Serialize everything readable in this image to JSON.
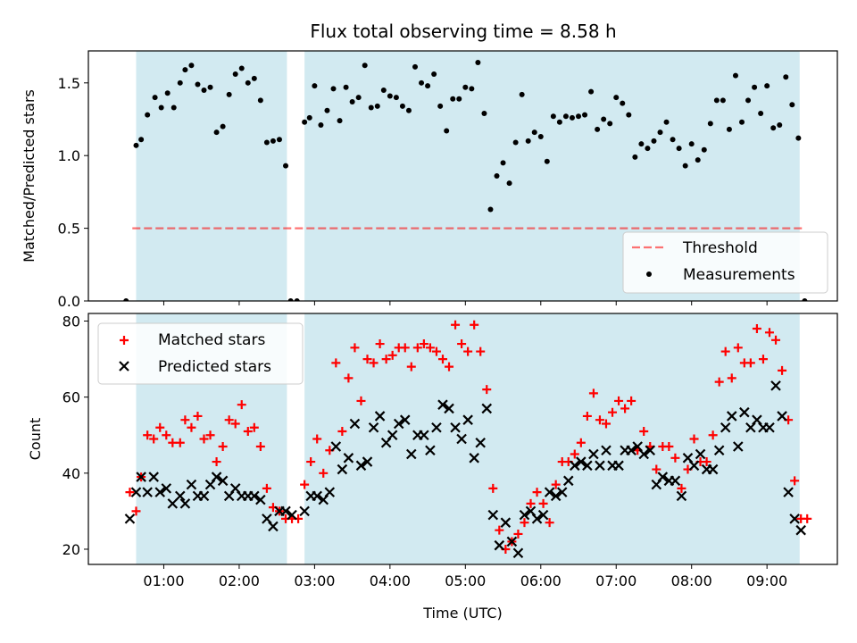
{
  "title": "Flux total observing time = 8.58 h",
  "colors": {
    "shade": "#add8e6",
    "threshold": "#ff0000",
    "measurement": "#000000",
    "matched": "#ff0000",
    "predicted": "#000000"
  },
  "chart_data": [
    {
      "type": "scatter",
      "ylabel": "Matched/Predicted stars",
      "ylim": [
        0,
        1.72
      ],
      "yticks": [
        "0.0",
        "0.5",
        "1.0",
        "1.5"
      ],
      "legend_position": "lower-right",
      "threshold": {
        "name": "Threshold",
        "value": 0.5,
        "x_range": [
          "00:35",
          "09:30"
        ]
      },
      "shaded_spans": [
        [
          "00:38",
          "02:38"
        ],
        [
          "02:52",
          "09:26"
        ]
      ],
      "series": [
        {
          "name": "Measurements",
          "x": [
            "00:30",
            "00:38",
            "00:42",
            "00:47",
            "00:53",
            "00:58",
            "01:03",
            "01:08",
            "01:13",
            "01:17",
            "01:22",
            "01:27",
            "01:32",
            "01:37",
            "01:42",
            "01:47",
            "01:52",
            "01:57",
            "02:02",
            "02:07",
            "02:12",
            "02:17",
            "02:22",
            "02:27",
            "02:32",
            "02:37",
            "02:41",
            "02:46",
            "02:52",
            "02:56",
            "03:00",
            "03:05",
            "03:10",
            "03:15",
            "03:20",
            "03:25",
            "03:30",
            "03:35",
            "03:40",
            "03:45",
            "03:50",
            "03:55",
            "04:00",
            "04:05",
            "04:10",
            "04:15",
            "04:20",
            "04:25",
            "04:30",
            "04:35",
            "04:40",
            "04:45",
            "04:50",
            "04:55",
            "05:00",
            "05:05",
            "05:10",
            "05:15",
            "05:20",
            "05:25",
            "05:30",
            "05:35",
            "05:40",
            "05:45",
            "05:50",
            "05:55",
            "06:00",
            "06:05",
            "06:10",
            "06:15",
            "06:20",
            "06:25",
            "06:30",
            "06:35",
            "06:40",
            "06:45",
            "06:50",
            "06:55",
            "07:00",
            "07:05",
            "07:10",
            "07:15",
            "07:20",
            "07:25",
            "07:30",
            "07:35",
            "07:40",
            "07:45",
            "07:50",
            "07:55",
            "08:00",
            "08:05",
            "08:10",
            "08:15",
            "08:20",
            "08:25",
            "08:30",
            "08:35",
            "08:40",
            "08:45",
            "08:50",
            "08:55",
            "09:00",
            "09:05",
            "09:10",
            "09:15",
            "09:20",
            "09:25",
            "09:30"
          ],
          "y": [
            0,
            1.07,
            1.11,
            1.28,
            1.4,
            1.33,
            1.43,
            1.33,
            1.5,
            1.59,
            1.62,
            1.49,
            1.45,
            1.47,
            1.16,
            1.2,
            1.42,
            1.56,
            1.6,
            1.5,
            1.53,
            1.38,
            1.09,
            1.1,
            1.11,
            0.93,
            0,
            0,
            1.23,
            1.26,
            1.48,
            1.21,
            1.31,
            1.46,
            1.24,
            1.47,
            1.37,
            1.4,
            1.62,
            1.33,
            1.34,
            1.45,
            1.41,
            1.4,
            1.34,
            1.31,
            1.61,
            1.5,
            1.48,
            1.56,
            1.34,
            1.17,
            1.39,
            1.39,
            1.47,
            1.46,
            1.64,
            1.29,
            0.63,
            0.86,
            0.95,
            0.81,
            1.09,
            1.42,
            1.1,
            1.16,
            1.13,
            0.96,
            1.27,
            1.23,
            1.27,
            1.26,
            1.27,
            1.28,
            1.44,
            1.18,
            1.25,
            1.22,
            1.4,
            1.36,
            1.28,
            0.99,
            1.08,
            1.05,
            1.1,
            1.16,
            1.23,
            1.11,
            1.05,
            0.93,
            1.08,
            0.97,
            1.04,
            1.22,
            1.38,
            1.38,
            1.18,
            1.55,
            1.23,
            1.38,
            1.47,
            1.29,
            1.48,
            1.19,
            1.21,
            1.54,
            1.35,
            1.12,
            0
          ]
        }
      ]
    },
    {
      "type": "scatter",
      "xlabel": "Time (UTC)",
      "ylabel": "Count",
      "ylim": [
        16,
        82
      ],
      "yticks": [
        "20",
        "40",
        "60",
        "80"
      ],
      "xticks": [
        "01:00",
        "02:00",
        "03:00",
        "04:00",
        "05:00",
        "06:00",
        "07:00",
        "08:00",
        "09:00"
      ],
      "xlim": [
        "00:00",
        "09:56"
      ],
      "legend_position": "upper-left",
      "shaded_spans": [
        [
          "00:38",
          "02:38"
        ],
        [
          "02:52",
          "09:26"
        ]
      ],
      "series": [
        {
          "name": "Matched stars",
          "marker": "+",
          "x": [
            "00:33",
            "00:38",
            "00:42",
            "00:47",
            "00:52",
            "00:57",
            "01:02",
            "01:07",
            "01:13",
            "01:17",
            "01:22",
            "01:27",
            "01:32",
            "01:37",
            "01:42",
            "01:47",
            "01:52",
            "01:57",
            "02:02",
            "02:07",
            "02:12",
            "02:17",
            "02:22",
            "02:27",
            "02:32",
            "02:37",
            "02:42",
            "02:47",
            "02:52",
            "02:57",
            "03:02",
            "03:07",
            "03:12",
            "03:17",
            "03:22",
            "03:27",
            "03:32",
            "03:37",
            "03:42",
            "03:47",
            "03:52",
            "03:57",
            "04:02",
            "04:07",
            "04:12",
            "04:17",
            "04:22",
            "04:27",
            "04:32",
            "04:37",
            "04:42",
            "04:47",
            "04:52",
            "04:57",
            "05:02",
            "05:07",
            "05:12",
            "05:17",
            "05:22",
            "05:27",
            "05:32",
            "05:37",
            "05:42",
            "05:47",
            "05:52",
            "05:57",
            "06:02",
            "06:07",
            "06:12",
            "06:17",
            "06:22",
            "06:27",
            "06:32",
            "06:37",
            "06:42",
            "06:47",
            "06:52",
            "06:57",
            "07:02",
            "07:07",
            "07:12",
            "07:17",
            "07:22",
            "07:27",
            "07:32",
            "07:37",
            "07:42",
            "07:47",
            "07:52",
            "07:57",
            "08:02",
            "08:07",
            "08:12",
            "08:17",
            "08:22",
            "08:27",
            "08:32",
            "08:37",
            "08:42",
            "08:47",
            "08:52",
            "08:57",
            "09:02",
            "09:07",
            "09:12",
            "09:17",
            "09:22",
            "09:27",
            "09:32"
          ],
          "y": [
            35,
            30,
            39,
            50,
            49,
            52,
            50,
            48,
            48,
            54,
            52,
            55,
            49,
            50,
            43,
            47,
            54,
            53,
            58,
            51,
            52,
            47,
            36,
            31,
            30,
            28,
            28,
            28,
            37,
            43,
            49,
            40,
            46,
            69,
            51,
            65,
            73,
            59,
            70,
            69,
            74,
            70,
            71,
            73,
            73,
            68,
            73,
            74,
            73,
            72,
            70,
            68,
            79,
            74,
            72,
            79,
            72,
            62,
            36,
            25,
            20,
            22,
            24,
            27,
            32,
            35,
            32,
            27,
            37,
            43,
            43,
            45,
            48,
            55,
            61,
            54,
            53,
            56,
            59,
            57,
            59,
            46,
            51,
            47,
            41,
            47,
            47,
            44,
            36,
            41,
            49,
            43,
            43,
            50,
            64,
            72,
            65,
            73,
            69,
            69,
            78,
            70,
            77,
            75,
            67,
            54,
            38,
            28,
            28
          ]
        },
        {
          "name": "Predicted stars",
          "marker": "x",
          "x": [
            "00:33",
            "00:38",
            "00:42",
            "00:47",
            "00:52",
            "00:57",
            "01:02",
            "01:07",
            "01:13",
            "01:17",
            "01:22",
            "01:27",
            "01:32",
            "01:37",
            "01:42",
            "01:47",
            "01:52",
            "01:57",
            "02:02",
            "02:07",
            "02:12",
            "02:17",
            "02:22",
            "02:27",
            "02:32",
            "02:37",
            "02:42",
            "02:52",
            "02:57",
            "03:02",
            "03:07",
            "03:12",
            "03:17",
            "03:22",
            "03:27",
            "03:32",
            "03:37",
            "03:42",
            "03:47",
            "03:52",
            "03:57",
            "04:02",
            "04:07",
            "04:12",
            "04:17",
            "04:22",
            "04:27",
            "04:32",
            "04:37",
            "04:42",
            "04:47",
            "04:52",
            "04:57",
            "05:02",
            "05:07",
            "05:12",
            "05:17",
            "05:22",
            "05:27",
            "05:32",
            "05:37",
            "05:42",
            "05:47",
            "05:52",
            "05:57",
            "06:02",
            "06:07",
            "06:12",
            "06:17",
            "06:22",
            "06:27",
            "06:32",
            "06:37",
            "06:42",
            "06:47",
            "06:52",
            "06:57",
            "07:02",
            "07:07",
            "07:12",
            "07:17",
            "07:22",
            "07:27",
            "07:32",
            "07:37",
            "07:42",
            "07:47",
            "07:52",
            "07:57",
            "08:02",
            "08:07",
            "08:12",
            "08:17",
            "08:22",
            "08:27",
            "08:32",
            "08:37",
            "08:42",
            "08:47",
            "08:52",
            "08:57",
            "09:02",
            "09:07",
            "09:12",
            "09:17",
            "09:22",
            "09:27"
          ],
          "y": [
            28,
            35,
            39,
            35,
            39,
            35,
            36,
            32,
            34,
            32,
            37,
            34,
            34,
            37,
            39,
            38,
            34,
            36,
            34,
            34,
            34,
            33,
            28,
            26,
            30,
            30,
            29,
            30,
            34,
            34,
            33,
            35,
            47,
            41,
            44,
            53,
            42,
            43,
            52,
            55,
            48,
            50,
            53,
            54,
            45,
            50,
            50,
            46,
            52,
            58,
            57,
            52,
            49,
            54,
            44,
            48,
            57,
            29,
            21,
            27,
            22,
            19,
            29,
            30,
            28,
            29,
            35,
            34,
            35,
            38,
            42,
            43,
            42,
            45,
            42,
            46,
            42,
            42,
            46,
            46,
            47,
            45,
            46,
            37,
            39,
            38,
            38,
            34,
            44,
            42,
            45,
            41,
            41,
            46,
            52,
            55,
            47,
            56,
            52,
            54,
            52,
            52,
            63,
            55,
            35,
            28,
            25
          ]
        }
      ]
    }
  ]
}
